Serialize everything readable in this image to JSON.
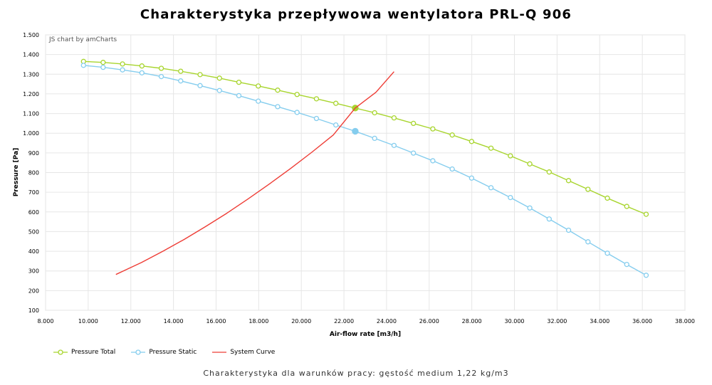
{
  "title": "Charakterystyka przepływowa wentylatora PRL-Q 906",
  "credit": "JS chart by amCharts",
  "subtitle": "Charakterystyka dla warunków pracy: gęstość medium 1,22 kg/m3",
  "chart_data": {
    "type": "line",
    "xlabel": "Air-flow rate [m3/h]",
    "ylabel": "Pressure [Pa]",
    "xlim": [
      8000,
      38000
    ],
    "ylim": [
      100,
      1500
    ],
    "x_ticks": [
      "8.000",
      "10.000",
      "12.000",
      "14.000",
      "16.000",
      "18.000",
      "20.000",
      "22.000",
      "24.000",
      "26.000",
      "28.000",
      "30.000",
      "32.000",
      "34.000",
      "36.000",
      "38.000"
    ],
    "y_ticks": [
      "100",
      "200",
      "300",
      "400",
      "500",
      "600",
      "700",
      "800",
      "900",
      "1.000",
      "1.100",
      "1.200",
      "1.300",
      "1.400",
      "1.500"
    ],
    "grid": true,
    "legend_position": "bottom-left",
    "series": [
      {
        "name": "Pressure Total",
        "color": "#a8d52e",
        "marker": "circle",
        "x": [
          9780,
          10700,
          11610,
          12520,
          13430,
          14340,
          15250,
          16160,
          17070,
          17980,
          18890,
          19800,
          20710,
          21620,
          22530,
          23440,
          24350,
          25260,
          26170,
          27080,
          27990,
          28900,
          29810,
          30720,
          31630,
          32540,
          33450,
          34360,
          35270,
          36180
        ],
        "y": [
          1365,
          1360,
          1352,
          1342,
          1330,
          1315,
          1298,
          1280,
          1259,
          1240,
          1219,
          1197,
          1175,
          1152,
          1128,
          1104,
          1078,
          1050,
          1022,
          991,
          958,
          924,
          885,
          844,
          803,
          759,
          715,
          670,
          628,
          588
        ],
        "highlight": {
          "x": 22530,
          "y": 1128
        }
      },
      {
        "name": "Pressure Static",
        "color": "#85cdee",
        "marker": "circle",
        "x": [
          9780,
          10700,
          11610,
          12520,
          13430,
          14340,
          15250,
          16160,
          17070,
          17980,
          18890,
          19800,
          20710,
          21620,
          22530,
          23440,
          24350,
          25260,
          26170,
          27080,
          27990,
          28900,
          29810,
          30720,
          31630,
          32540,
          33450,
          34360,
          35270,
          36180
        ],
        "y": [
          1345,
          1335,
          1322,
          1307,
          1288,
          1266,
          1242,
          1217,
          1191,
          1163,
          1135,
          1106,
          1075,
          1042,
          1010,
          974,
          938,
          899,
          860,
          818,
          772,
          723,
          673,
          620,
          564,
          507,
          448,
          390,
          333,
          278
        ],
        "highlight": {
          "x": 22530,
          "y": 1010
        }
      },
      {
        "name": "System Curve",
        "color": "#ee3d36",
        "marker": "none",
        "x": [
          11300,
          12500,
          13500,
          14500,
          15500,
          16500,
          17500,
          18500,
          19500,
          20500,
          21500,
          22530,
          23500,
          24350
        ],
        "y": [
          282,
          343,
          400,
          460,
          525,
          593,
          666,
          742,
          821,
          904,
          991,
          1128,
          1208,
          1313
        ]
      }
    ]
  }
}
